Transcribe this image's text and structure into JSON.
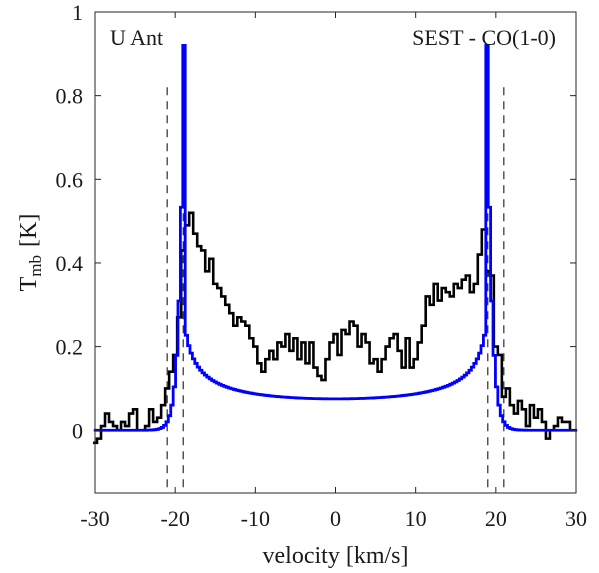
{
  "chart_data": {
    "type": "line",
    "xlabel": "velocity [km/s]",
    "ylabel_main": "T",
    "ylabel_sub": "mb",
    "ylabel_unit": "[K]",
    "xlim": [
      -30,
      30
    ],
    "ylim": [
      -0.15,
      1
    ],
    "x_ticks": [
      -30,
      -20,
      -10,
      0,
      10,
      20,
      30
    ],
    "x_tick_labels": [
      "-30",
      "-20",
      "-10",
      "0",
      "10",
      "20",
      "30"
    ],
    "y_ticks": [
      0,
      0.2,
      0.4,
      0.6,
      0.8,
      1
    ],
    "y_tick_labels": [
      "0",
      "0.2",
      "0.4",
      "0.6",
      "0.8",
      "1"
    ],
    "annotations": [
      "U Ant",
      "SEST - CO(1-0)"
    ],
    "grid": false,
    "series": [
      {
        "style": "step",
        "color": "#000000",
        "x": [
          -30,
          -29.5,
          -29,
          -28.5,
          -28,
          -27.5,
          -27,
          -26.5,
          -26,
          -25.5,
          -25,
          -24.5,
          -24,
          -23.5,
          -23,
          -22.5,
          -22,
          -21.5,
          -21,
          -20.5,
          -20,
          -19.5,
          -19,
          -18.5,
          -18,
          -17.5,
          -17,
          -16.5,
          -16,
          -15.5,
          -15,
          -14.5,
          -14,
          -13.5,
          -13,
          -12.5,
          -12,
          -11.5,
          -11,
          -10.5,
          -10,
          -9.5,
          -9,
          -8.5,
          -8,
          -7.5,
          -7,
          -6.5,
          -6,
          -5.5,
          -5,
          -4.5,
          -4,
          -3.5,
          -3,
          -2.5,
          -2,
          -1.5,
          -1,
          -0.5,
          0,
          0.5,
          1,
          1.5,
          2,
          2.5,
          3,
          3.5,
          4,
          4.5,
          5,
          5.5,
          6,
          6.5,
          7,
          7.5,
          8,
          8.5,
          9,
          9.5,
          10,
          10.5,
          11,
          11.5,
          12,
          12.5,
          13,
          13.5,
          14,
          14.5,
          15,
          15.5,
          16,
          16.5,
          17,
          17.5,
          18,
          18.5,
          19,
          19.5,
          20,
          20.5,
          21,
          21.5,
          22,
          22.5,
          23,
          23.5,
          24,
          24.5,
          25,
          25.5,
          26,
          26.5,
          27,
          27.5,
          28,
          28.5,
          29,
          29.5
        ],
        "y": [
          -0.03,
          -0.02,
          0.01,
          0.04,
          0.02,
          0.01,
          0.0,
          0.02,
          0.01,
          0.04,
          0.05,
          0.0,
          0.0,
          0.01,
          0.05,
          0.02,
          0.03,
          0.06,
          0.1,
          0.14,
          0.18,
          0.27,
          0.43,
          0.49,
          0.52,
          0.47,
          0.44,
          0.43,
          0.38,
          0.41,
          0.35,
          0.34,
          0.32,
          0.3,
          0.28,
          0.25,
          0.27,
          0.26,
          0.25,
          0.22,
          0.2,
          0.16,
          0.14,
          0.17,
          0.19,
          0.17,
          0.21,
          0.2,
          0.23,
          0.19,
          0.22,
          0.17,
          0.21,
          0.16,
          0.21,
          0.15,
          0.13,
          0.12,
          0.17,
          0.21,
          0.23,
          0.18,
          0.24,
          0.23,
          0.26,
          0.25,
          0.2,
          0.23,
          0.21,
          0.16,
          0.17,
          0.14,
          0.17,
          0.2,
          0.22,
          0.23,
          0.19,
          0.15,
          0.22,
          0.15,
          0.17,
          0.21,
          0.25,
          0.32,
          0.3,
          0.35,
          0.31,
          0.34,
          0.33,
          0.32,
          0.35,
          0.34,
          0.36,
          0.37,
          0.33,
          0.35,
          0.42,
          0.48,
          0.38,
          0.37,
          0.2,
          0.18,
          0.08,
          0.1,
          0.06,
          0.04,
          0.07,
          0.05,
          0.01,
          0.06,
          0.03,
          0.05,
          0.02,
          -0.02,
          0.0,
          0.01,
          0.03,
          0.02,
          0.02,
          0.0
        ]
      },
      {
        "style": "step",
        "color": "#0000ff",
        "model": {
          "shape": "shell",
          "expansion_velocity": 18.9,
          "peak": 0.92,
          "floor": 0.075,
          "cutoff_width": 0.55
        }
      }
    ],
    "vertical_lines": [
      {
        "x": -21,
        "style": "dashed",
        "color": "#000000"
      },
      {
        "x": -19,
        "style": "dashed",
        "color": "#000000"
      },
      {
        "x": 19,
        "style": "dashed",
        "color": "#000000"
      },
      {
        "x": 21,
        "style": "dashed",
        "color": "#000000"
      }
    ]
  }
}
